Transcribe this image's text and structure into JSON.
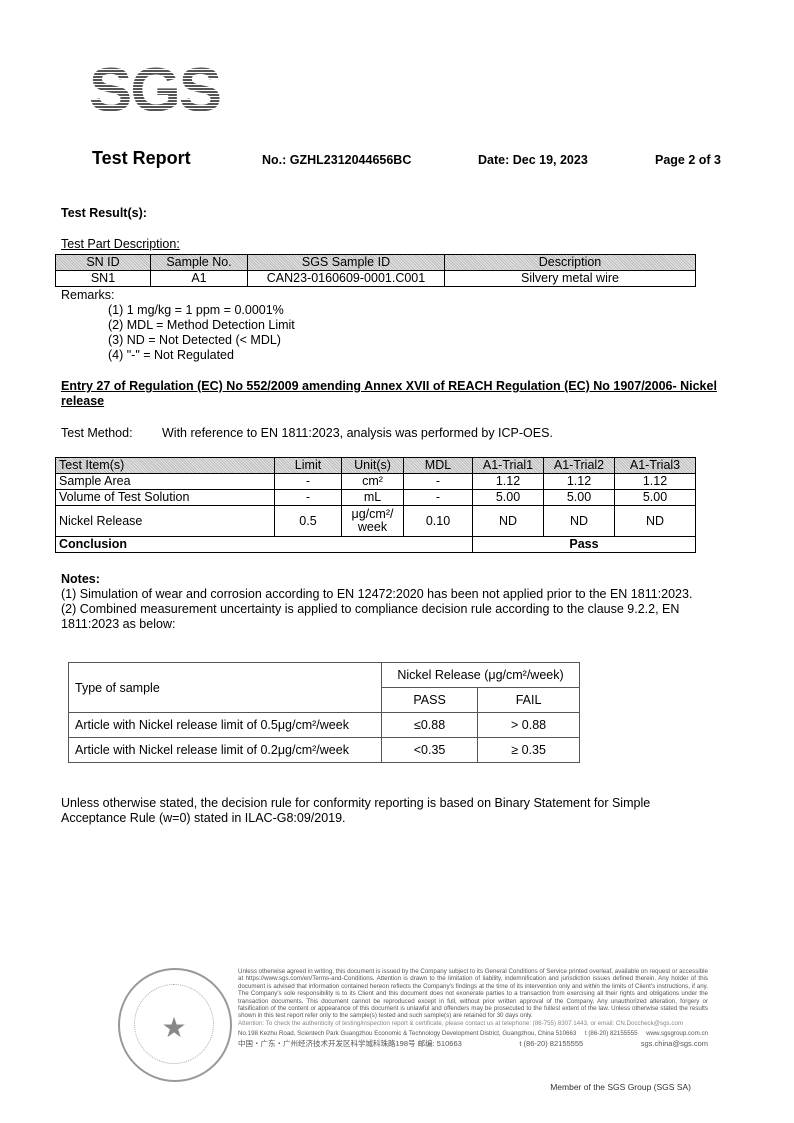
{
  "logo": "SGS",
  "header": {
    "title": "Test Report",
    "report_no": "No.: GZHL2312044656BC",
    "date": "Date: Dec 19, 2023",
    "page": "Page 2 of 3"
  },
  "results_heading": "Test Result(s):",
  "part_desc_label": "Test Part Description:",
  "part_table": {
    "headers": [
      "SN ID",
      "Sample No.",
      "SGS Sample ID",
      "Description"
    ],
    "rows": [
      [
        "SN1",
        "A1",
        "CAN23-0160609-0001.C001",
        "Silvery metal wire"
      ]
    ]
  },
  "remarks": {
    "label": "Remarks:",
    "items": [
      "(1)  1 mg/kg = 1 ppm = 0.0001%",
      "(2)  MDL = Method Detection Limit",
      "(3)  ND = Not Detected (< MDL)",
      "(4)  \"-\" = Not Regulated"
    ]
  },
  "entry_title": "Entry 27 of Regulation (EC) No 552/2009 amending Annex XVII of REACH Regulation (EC) No 1907/2006- Nickel release",
  "method": {
    "label": "Test Method:",
    "text": "With reference to EN 1811:2023, analysis was performed by ICP-OES."
  },
  "result_table": {
    "headers": [
      "Test Item(s)",
      "Limit",
      "Unit(s)",
      "MDL",
      "A1-Trial1",
      "A1-Trial2",
      "A1-Trial3"
    ],
    "rows": [
      [
        "Sample Area",
        "-",
        "cm²",
        "-",
        "1.12",
        "1.12",
        "1.12"
      ],
      [
        "Volume of Test Solution",
        "-",
        "mL",
        "-",
        "5.00",
        "5.00",
        "5.00"
      ],
      [
        "Nickel Release",
        "0.5",
        "μg/cm²/ week",
        "0.10",
        "ND",
        "ND",
        "ND"
      ]
    ],
    "conclusion_label": "Conclusion",
    "conclusion": "Pass"
  },
  "notes": {
    "label": "Notes:",
    "items": [
      "(1) Simulation of wear and corrosion according to EN 12472:2020 has been not applied prior to the EN 1811:2023.",
      "(2) Combined measurement uncertainty is applied to compliance decision rule according to the clause 9.2.2, EN 1811:2023 as below:"
    ]
  },
  "rule_table": {
    "type_header": "Type of sample",
    "group_header": "Nickel Release (μg/cm²/week)",
    "pass": "PASS",
    "fail": "FAIL",
    "rows": [
      [
        "Article with Nickel release limit of 0.5μg/cm²/week",
        "≤0.88",
        "> 0.88"
      ],
      [
        "Article with Nickel release limit of 0.2μg/cm²/week",
        "<0.35",
        "≥ 0.35"
      ]
    ]
  },
  "decision_rule": "Unless otherwise stated, the decision rule for conformity reporting is based on Binary Statement for Simple Acceptance Rule (w=0) stated in ILAC-G8:09/2019.",
  "footer": {
    "disclaimer": "Unless otherwise agreed in writing, this document is issued by the Company subject to its General Conditions of Service printed overleaf, available on request or accessible at https://www.sgs.com/en/Terms-and-Conditions. Attention is drawn to the limitation of liability, indemnification and jurisdiction issues defined therein. Any holder of this document is advised that information contained hereon reflects the Company's findings at the time of its intervention only and within the limits of Client's instructions, if any. The Company's sole responsibility is to its Client and this document does not exonerate parties to a transaction from exercising all their rights and obligations under the transaction documents. This document cannot be reproduced except in full, without prior written approval of the Company. Any unauthorized alteration, forgery or falsification of the content or appearance of this document is unlawful and offenders may be prosecuted to the fullest extent of the law. Unless otherwise stated the results shown in this test report refer only to the sample(s) tested and such sample(s) are retained for 30 days only.",
    "attention": "Attention: To check the authenticity of testing/inspection report & certificate, please contact us at telephone: (86-755) 8307 1443, or email: CN.Doccheck@sgs.com",
    "address_en": "No.198 Kezhu Road, Scientech Park Guangzhou Economic & Technology Development District, Guangzhou, China 510663",
    "address_cn": "中国・广东・广州经济技术开发区科学城科珠路198号 邮编: 510663",
    "phone": "t (86-20) 82155555",
    "web": "www.sgsgroup.com.cn",
    "email": "sgs.china@sgs.com",
    "member": "Member of the SGS Group (SGS SA)"
  }
}
